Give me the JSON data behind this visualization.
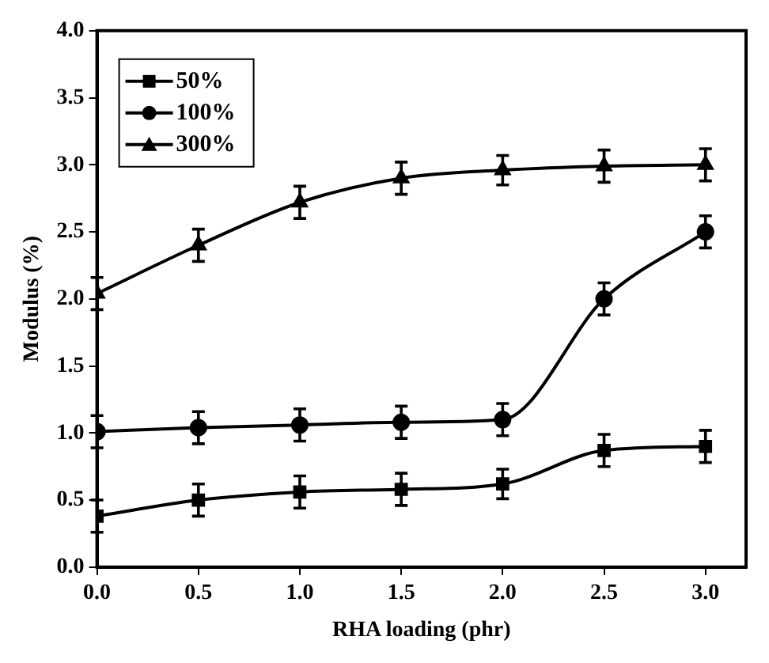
{
  "chart_data": {
    "type": "line",
    "xlabel": "RHA loading (phr)",
    "ylabel": "Modulus (%)",
    "x": [
      0,
      0.5,
      1,
      1.5,
      2,
      2.5,
      3
    ],
    "series": [
      {
        "name": "50%",
        "color": "#000000",
        "marker": "square",
        "values": [
          0.38,
          0.5,
          0.56,
          0.58,
          0.62,
          0.87,
          0.9
        ],
        "errors": [
          0.12,
          0.12,
          0.12,
          0.12,
          0.11,
          0.12,
          0.12
        ]
      },
      {
        "name": "100%",
        "color": "#000000",
        "marker": "circle",
        "values": [
          1.01,
          1.04,
          1.06,
          1.08,
          1.1,
          2.0,
          2.5
        ],
        "errors": [
          0.12,
          0.12,
          0.12,
          0.12,
          0.12,
          0.12,
          0.12
        ]
      },
      {
        "name": "300%",
        "color": "#000000",
        "marker": "triangle",
        "values": [
          2.04,
          2.4,
          2.72,
          2.9,
          2.96,
          2.99,
          3.0
        ],
        "errors": [
          0.12,
          0.12,
          0.12,
          0.12,
          0.11,
          0.12,
          0.12
        ]
      }
    ],
    "xlim": [
      0,
      3.2
    ],
    "xticks": [
      {
        "value": 0,
        "label": "0.0"
      },
      {
        "value": 0.5,
        "label": "0.5"
      },
      {
        "value": 1,
        "label": "1.0"
      },
      {
        "value": 1.5,
        "label": "1.5"
      },
      {
        "value": 2,
        "label": "2.0"
      },
      {
        "value": 2.5,
        "label": "2.5"
      },
      {
        "value": 3,
        "label": "3.0"
      }
    ],
    "ylim": [
      0,
      4
    ],
    "yticks": [
      {
        "value": 0,
        "label": "0.0"
      },
      {
        "value": 0.5,
        "label": "0.5"
      },
      {
        "value": 1,
        "label": "1.0"
      },
      {
        "value": 1.5,
        "label": "1.5"
      },
      {
        "value": 2,
        "label": "2.0"
      },
      {
        "value": 2.5,
        "label": "2.5"
      },
      {
        "value": 3,
        "label": "3.0"
      },
      {
        "value": 3.5,
        "label": "3.5"
      },
      {
        "value": 4,
        "label": "4.0"
      }
    ],
    "grid": false,
    "legend": "top left",
    "line_style": "solid"
  }
}
